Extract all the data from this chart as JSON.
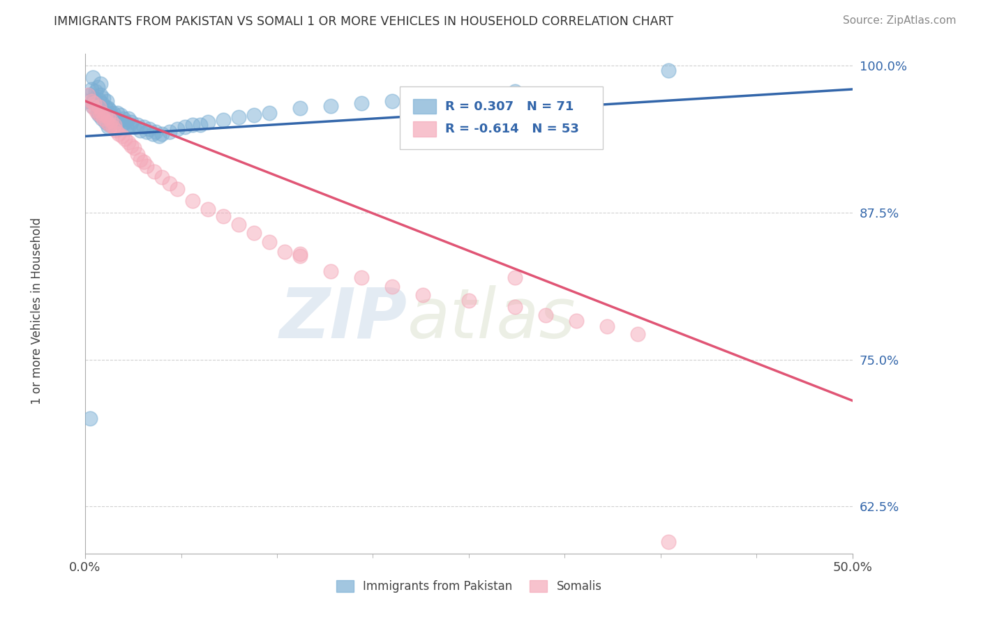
{
  "title": "IMMIGRANTS FROM PAKISTAN VS SOMALI 1 OR MORE VEHICLES IN HOUSEHOLD CORRELATION CHART",
  "source": "Source: ZipAtlas.com",
  "ylabel": "1 or more Vehicles in Household",
  "xlim": [
    0.0,
    0.5
  ],
  "ylim": [
    0.585,
    1.01
  ],
  "xtick_labels": [
    "0.0%",
    "50.0%"
  ],
  "ytick_labels": [
    "62.5%",
    "75.0%",
    "87.5%",
    "100.0%"
  ],
  "ytick_values": [
    0.625,
    0.75,
    0.875,
    1.0
  ],
  "xtick_values": [
    0.0,
    0.5
  ],
  "watermark_zip": "ZIP",
  "watermark_atlas": "atlas",
  "legend1_label": "Immigrants from Pakistan",
  "legend2_label": "Somalis",
  "R_pakistan": 0.307,
  "N_pakistan": 71,
  "R_somali": -0.614,
  "N_somali": 53,
  "blue_color": "#7BAFD4",
  "pink_color": "#F4A8B8",
  "line_blue": "#3366AA",
  "line_pink": "#E05575",
  "pakistan_x": [
    0.002,
    0.003,
    0.004,
    0.005,
    0.005,
    0.006,
    0.007,
    0.007,
    0.008,
    0.008,
    0.009,
    0.009,
    0.01,
    0.01,
    0.01,
    0.011,
    0.011,
    0.012,
    0.012,
    0.013,
    0.013,
    0.014,
    0.014,
    0.015,
    0.015,
    0.016,
    0.016,
    0.017,
    0.018,
    0.019,
    0.02,
    0.021,
    0.022,
    0.023,
    0.024,
    0.025,
    0.026,
    0.027,
    0.028,
    0.029,
    0.03,
    0.032,
    0.034,
    0.036,
    0.038,
    0.04,
    0.042,
    0.044,
    0.046,
    0.048,
    0.05,
    0.055,
    0.06,
    0.065,
    0.07,
    0.075,
    0.08,
    0.09,
    0.1,
    0.11,
    0.12,
    0.14,
    0.16,
    0.18,
    0.2,
    0.22,
    0.24,
    0.26,
    0.28,
    0.38,
    0.003
  ],
  "pakistan_y": [
    0.97,
    0.975,
    0.98,
    0.965,
    0.99,
    0.972,
    0.968,
    0.978,
    0.96,
    0.982,
    0.971,
    0.958,
    0.975,
    0.962,
    0.985,
    0.968,
    0.955,
    0.972,
    0.96,
    0.965,
    0.952,
    0.97,
    0.958,
    0.964,
    0.948,
    0.962,
    0.95,
    0.958,
    0.96,
    0.955,
    0.955,
    0.96,
    0.952,
    0.958,
    0.95,
    0.955,
    0.952,
    0.948,
    0.955,
    0.95,
    0.952,
    0.948,
    0.95,
    0.945,
    0.948,
    0.944,
    0.946,
    0.942,
    0.944,
    0.94,
    0.942,
    0.944,
    0.946,
    0.948,
    0.95,
    0.95,
    0.952,
    0.954,
    0.956,
    0.958,
    0.96,
    0.964,
    0.966,
    0.968,
    0.97,
    0.972,
    0.974,
    0.976,
    0.978,
    0.996,
    0.7
  ],
  "somali_x": [
    0.002,
    0.004,
    0.005,
    0.006,
    0.007,
    0.008,
    0.009,
    0.01,
    0.011,
    0.012,
    0.013,
    0.014,
    0.015,
    0.016,
    0.017,
    0.018,
    0.019,
    0.02,
    0.022,
    0.024,
    0.026,
    0.028,
    0.03,
    0.032,
    0.034,
    0.036,
    0.038,
    0.04,
    0.045,
    0.05,
    0.055,
    0.06,
    0.07,
    0.08,
    0.09,
    0.1,
    0.11,
    0.12,
    0.13,
    0.14,
    0.16,
    0.18,
    0.2,
    0.22,
    0.25,
    0.28,
    0.3,
    0.32,
    0.34,
    0.36,
    0.14,
    0.28,
    0.38
  ],
  "somali_y": [
    0.975,
    0.97,
    0.965,
    0.968,
    0.962,
    0.96,
    0.965,
    0.958,
    0.96,
    0.955,
    0.958,
    0.952,
    0.956,
    0.95,
    0.953,
    0.948,
    0.95,
    0.945,
    0.942,
    0.94,
    0.938,
    0.935,
    0.932,
    0.93,
    0.925,
    0.92,
    0.918,
    0.915,
    0.91,
    0.905,
    0.9,
    0.895,
    0.885,
    0.878,
    0.872,
    0.865,
    0.858,
    0.85,
    0.842,
    0.838,
    0.825,
    0.82,
    0.812,
    0.805,
    0.8,
    0.795,
    0.788,
    0.783,
    0.778,
    0.772,
    0.84,
    0.82,
    0.595
  ],
  "pakistan_line_x": [
    0.0,
    0.5
  ],
  "pakistan_line_y": [
    0.94,
    0.98
  ],
  "somali_line_x": [
    0.0,
    0.5
  ],
  "somali_line_y": [
    0.97,
    0.715
  ]
}
